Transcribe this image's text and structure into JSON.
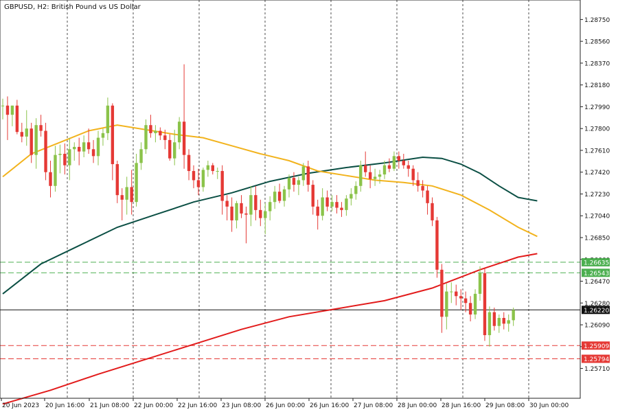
{
  "title": "GBPUSD, H2:  British Pound vs US Dollar",
  "colors": {
    "background": "#ffffff",
    "bull": "#8bc34a",
    "bear": "#e53935",
    "ma_fast": "#f2b31d",
    "ma_mid": "#0b4f44",
    "ma_slow": "#e21b1b",
    "support": "#e53935",
    "resistance": "#4caf50",
    "price_line": "#111111",
    "grid": "#222222"
  },
  "chart_data": {
    "type": "candlestick",
    "symbol": "GBPUSD",
    "timeframe": "H2",
    "y_ticks": [
      "1.28750",
      "1.28560",
      "1.28370",
      "1.28180",
      "1.27990",
      "1.27800",
      "1.27610",
      "1.27420",
      "1.27230",
      "1.27040",
      "1.26850",
      "1.26660",
      "1.26470",
      "1.26280",
      "1.26090",
      "1.25900",
      "1.25710"
    ],
    "ylim": [
      1.2545,
      1.2892
    ],
    "x_ticks": [
      "20 Jun 2023",
      "20 Jun 16:00",
      "21 Jun 08:00",
      "22 Jun 00:00",
      "22 Jun 16:00",
      "23 Jun 08:00",
      "26 Jun 00:00",
      "26 Jun 16:00",
      "27 Jun 08:00",
      "28 Jun 00:00",
      "28 Jun 16:00",
      "29 Jun 08:00",
      "30 Jun 00:00"
    ],
    "levels": [
      {
        "name": "resistance-upper",
        "label": "1.26635",
        "value": 1.26635,
        "style": "dashed",
        "kind": "resistance"
      },
      {
        "name": "resistance-lower",
        "label": "1.26543",
        "value": 1.26543,
        "style": "dashed",
        "kind": "resistance"
      },
      {
        "name": "current-price",
        "label": "1.26220",
        "value": 1.2622,
        "style": "solid",
        "kind": "price"
      },
      {
        "name": "support-upper",
        "label": "1.25909",
        "value": 1.25909,
        "style": "dashed",
        "kind": "support"
      },
      {
        "name": "support-lower",
        "label": "1.25794",
        "value": 1.25794,
        "style": "dashed",
        "kind": "support"
      }
    ],
    "candles": [
      [
        1.28,
        1.2806,
        1.2788,
        1.28
      ],
      [
        1.28,
        1.2808,
        1.277,
        1.2792
      ],
      [
        1.2792,
        1.28,
        1.2782,
        1.28
      ],
      [
        1.28,
        1.2805,
        1.2775,
        1.2777
      ],
      [
        1.2777,
        1.2785,
        1.2768,
        1.2773
      ],
      [
        1.2773,
        1.2796,
        1.2765,
        1.278
      ],
      [
        1.278,
        1.2785,
        1.275,
        1.2757
      ],
      [
        1.2757,
        1.2789,
        1.2745,
        1.2783
      ],
      [
        1.2783,
        1.2792,
        1.2773,
        1.2778
      ],
      [
        1.2778,
        1.2785,
        1.2735,
        1.2742
      ],
      [
        1.2742,
        1.2752,
        1.272,
        1.273
      ],
      [
        1.273,
        1.2765,
        1.2725,
        1.2757
      ],
      [
        1.2757,
        1.2766,
        1.2741,
        1.2758
      ],
      [
        1.2758,
        1.2767,
        1.274,
        1.2748
      ],
      [
        1.2748,
        1.2772,
        1.2735,
        1.2762
      ],
      [
        1.2762,
        1.2768,
        1.2752,
        1.2764
      ],
      [
        1.2764,
        1.2772,
        1.2748,
        1.276
      ],
      [
        1.276,
        1.2774,
        1.2755,
        1.2768
      ],
      [
        1.2768,
        1.278,
        1.2758,
        1.2762
      ],
      [
        1.2762,
        1.277,
        1.275,
        1.2756
      ],
      [
        1.2756,
        1.2778,
        1.2748,
        1.2772
      ],
      [
        1.2772,
        1.278,
        1.2765,
        1.2776
      ],
      [
        1.2776,
        1.2807,
        1.277,
        1.28
      ],
      [
        1.28,
        1.2802,
        1.2735,
        1.2749
      ],
      [
        1.2749,
        1.2752,
        1.2715,
        1.2722
      ],
      [
        1.2722,
        1.2728,
        1.27,
        1.2718
      ],
      [
        1.2718,
        1.2738,
        1.2705,
        1.2729
      ],
      [
        1.2729,
        1.2744,
        1.2705,
        1.2716
      ],
      [
        1.2716,
        1.2758,
        1.2712,
        1.275
      ],
      [
        1.275,
        1.2768,
        1.2744,
        1.2762
      ],
      [
        1.2762,
        1.2788,
        1.2758,
        1.2783
      ],
      [
        1.2783,
        1.2792,
        1.2772,
        1.2776
      ],
      [
        1.2776,
        1.2783,
        1.2768,
        1.2778
      ],
      [
        1.2778,
        1.2781,
        1.277,
        1.2774
      ],
      [
        1.2774,
        1.2779,
        1.2762,
        1.277
      ],
      [
        1.277,
        1.2775,
        1.2752,
        1.2754
      ],
      [
        1.2754,
        1.2779,
        1.2748,
        1.2768
      ],
      [
        1.2768,
        1.279,
        1.2762,
        1.2786
      ],
      [
        1.2786,
        1.2836,
        1.2745,
        1.2757
      ],
      [
        1.2757,
        1.2762,
        1.2735,
        1.2743
      ],
      [
        1.2743,
        1.2748,
        1.2728,
        1.2735
      ],
      [
        1.2735,
        1.2745,
        1.2722,
        1.2729
      ],
      [
        1.2729,
        1.2746,
        1.2725,
        1.2744
      ],
      [
        1.2744,
        1.2752,
        1.2738,
        1.2748
      ],
      [
        1.2748,
        1.275,
        1.274,
        1.2743
      ],
      [
        1.2743,
        1.2746,
        1.2736,
        1.2743
      ],
      [
        1.2743,
        1.2748,
        1.2705,
        1.2717
      ],
      [
        1.2717,
        1.2722,
        1.27,
        1.2712
      ],
      [
        1.2712,
        1.272,
        1.269,
        1.27
      ],
      [
        1.27,
        1.2717,
        1.2693,
        1.2715
      ],
      [
        1.2715,
        1.2722,
        1.2702,
        1.2706
      ],
      [
        1.2706,
        1.2712,
        1.268,
        1.2705
      ],
      [
        1.2705,
        1.273,
        1.2695,
        1.2722
      ],
      [
        1.2722,
        1.273,
        1.27,
        1.2709
      ],
      [
        1.2709,
        1.2718,
        1.2695,
        1.2702
      ],
      [
        1.2702,
        1.2715,
        1.2688,
        1.2708
      ],
      [
        1.2708,
        1.2721,
        1.27,
        1.2716
      ],
      [
        1.2716,
        1.273,
        1.271,
        1.2725
      ],
      [
        1.2725,
        1.2732,
        1.2715,
        1.2717
      ],
      [
        1.2717,
        1.273,
        1.2712,
        1.2727
      ],
      [
        1.2727,
        1.274,
        1.272,
        1.2737
      ],
      [
        1.2737,
        1.2742,
        1.2725,
        1.2731
      ],
      [
        1.2731,
        1.2738,
        1.2722,
        1.2735
      ],
      [
        1.2735,
        1.275,
        1.273,
        1.2747
      ],
      [
        1.2747,
        1.2752,
        1.2725,
        1.2731
      ],
      [
        1.2731,
        1.2735,
        1.2705,
        1.2712
      ],
      [
        1.2712,
        1.2718,
        1.2692,
        1.2704
      ],
      [
        1.2704,
        1.2728,
        1.27,
        1.272
      ],
      [
        1.272,
        1.2726,
        1.2708,
        1.2712
      ],
      [
        1.2712,
        1.2722,
        1.2708,
        1.2716
      ],
      [
        1.2716,
        1.2722,
        1.2706,
        1.2711
      ],
      [
        1.2711,
        1.2716,
        1.2703,
        1.2709
      ],
      [
        1.2709,
        1.2722,
        1.2704,
        1.2719
      ],
      [
        1.2719,
        1.2728,
        1.2713,
        1.2723
      ],
      [
        1.2723,
        1.2734,
        1.2718,
        1.273
      ],
      [
        1.273,
        1.2752,
        1.2725,
        1.2748
      ],
      [
        1.2748,
        1.276,
        1.2738,
        1.2742
      ],
      [
        1.2742,
        1.2748,
        1.2728,
        1.2736
      ],
      [
        1.2736,
        1.2745,
        1.273,
        1.2738
      ],
      [
        1.2738,
        1.2744,
        1.2732,
        1.274
      ],
      [
        1.274,
        1.2752,
        1.2736,
        1.2748
      ],
      [
        1.2748,
        1.2754,
        1.2742,
        1.2745
      ],
      [
        1.2745,
        1.276,
        1.2743,
        1.2756
      ],
      [
        1.2756,
        1.276,
        1.2745,
        1.2752
      ],
      [
        1.2752,
        1.2758,
        1.2745,
        1.2748
      ],
      [
        1.2748,
        1.2752,
        1.2738,
        1.2745
      ],
      [
        1.2745,
        1.2748,
        1.273,
        1.2735
      ],
      [
        1.2735,
        1.2742,
        1.2725,
        1.273
      ],
      [
        1.273,
        1.2735,
        1.272,
        1.2726
      ],
      [
        1.2726,
        1.273,
        1.2705,
        1.2715
      ],
      [
        1.2715,
        1.272,
        1.2695,
        1.27
      ],
      [
        1.27,
        1.2703,
        1.265,
        1.2657
      ],
      [
        1.2657,
        1.2662,
        1.2602,
        1.2616
      ],
      [
        1.2616,
        1.2645,
        1.2605,
        1.2638
      ],
      [
        1.2638,
        1.2646,
        1.2628,
        1.2638
      ],
      [
        1.2638,
        1.2644,
        1.2626,
        1.2634
      ],
      [
        1.2634,
        1.264,
        1.2622,
        1.2632
      ],
      [
        1.2632,
        1.2638,
        1.262,
        1.2628
      ],
      [
        1.2628,
        1.2634,
        1.2612,
        1.2618
      ],
      [
        1.2618,
        1.264,
        1.2614,
        1.2636
      ],
      [
        1.2636,
        1.266,
        1.263,
        1.2654
      ],
      [
        1.2654,
        1.2658,
        1.2595,
        1.26
      ],
      [
        1.26,
        1.2625,
        1.259,
        1.262
      ],
      [
        1.262,
        1.2624,
        1.2604,
        1.2608
      ],
      [
        1.2608,
        1.2618,
        1.2602,
        1.2615
      ],
      [
        1.2615,
        1.262,
        1.2605,
        1.261
      ],
      [
        1.261,
        1.2618,
        1.2603,
        1.2613
      ],
      [
        1.2613,
        1.2624,
        1.2608,
        1.2622
      ]
    ],
    "ma_fast": [
      [
        0,
        1.2738
      ],
      [
        6,
        1.2758
      ],
      [
        12,
        1.2768
      ],
      [
        18,
        1.2778
      ],
      [
        24,
        1.2783
      ],
      [
        30,
        1.2779
      ],
      [
        36,
        1.2775
      ],
      [
        42,
        1.2772
      ],
      [
        48,
        1.2765
      ],
      [
        54,
        1.2758
      ],
      [
        60,
        1.2752
      ],
      [
        66,
        1.2743
      ],
      [
        72,
        1.2739
      ],
      [
        78,
        1.2735
      ],
      [
        84,
        1.2733
      ],
      [
        90,
        1.273
      ],
      [
        96,
        1.2722
      ],
      [
        102,
        1.2709
      ],
      [
        108,
        1.2694
      ],
      [
        112,
        1.2686
      ]
    ],
    "ma_mid": [
      [
        0,
        1.2636
      ],
      [
        8,
        1.2662
      ],
      [
        16,
        1.2678
      ],
      [
        24,
        1.2694
      ],
      [
        32,
        1.2705
      ],
      [
        40,
        1.2716
      ],
      [
        48,
        1.2724
      ],
      [
        56,
        1.2734
      ],
      [
        64,
        1.2741
      ],
      [
        72,
        1.2746
      ],
      [
        80,
        1.275
      ],
      [
        88,
        1.2755
      ],
      [
        92,
        1.2754
      ],
      [
        96,
        1.2749
      ],
      [
        100,
        1.2741
      ],
      [
        104,
        1.273
      ],
      [
        108,
        1.272
      ],
      [
        112,
        1.2717
      ]
    ],
    "ma_slow": [
      [
        0,
        1.254
      ],
      [
        10,
        1.2552
      ],
      [
        20,
        1.2566
      ],
      [
        30,
        1.2579
      ],
      [
        40,
        1.2592
      ],
      [
        50,
        1.2605
      ],
      [
        60,
        1.2616
      ],
      [
        70,
        1.2623
      ],
      [
        80,
        1.263
      ],
      [
        90,
        1.2641
      ],
      [
        100,
        1.2657
      ],
      [
        108,
        1.2668
      ],
      [
        112,
        1.2671
      ]
    ]
  }
}
